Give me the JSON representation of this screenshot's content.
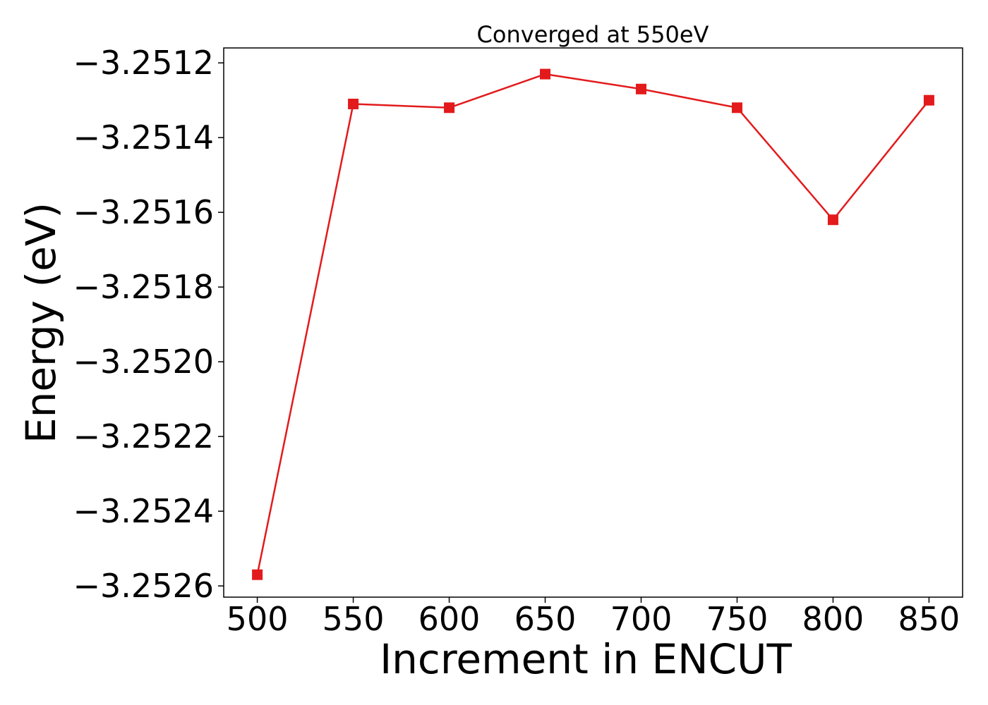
{
  "chart_data": {
    "type": "line",
    "title": "Converged at 550eV",
    "xlabel": "Increment in ENCUT",
    "ylabel": "Energy (eV)",
    "x": [
      500,
      550,
      600,
      650,
      700,
      750,
      800,
      850
    ],
    "series": [
      {
        "values": [
          -3.25257,
          -3.25131,
          -3.25132,
          -3.25123,
          -3.25127,
          -3.25132,
          -3.25162,
          -3.2513
        ],
        "color": "#e31a1c",
        "marker": "square"
      }
    ],
    "xticks": [
      500,
      550,
      600,
      650,
      700,
      750,
      800,
      850
    ],
    "xtick_labels": [
      "500",
      "550",
      "600",
      "650",
      "700",
      "750",
      "800",
      "850"
    ],
    "yticks": [
      -3.2526,
      -3.2524,
      -3.2522,
      -3.252,
      -3.2518,
      -3.2516,
      -3.2514,
      -3.2512
    ],
    "ytick_labels": [
      "−3.2526",
      "−3.2524",
      "−3.2522",
      "−3.2520",
      "−3.2518",
      "−3.2516",
      "−3.2514",
      "−3.2512"
    ],
    "xlim": [
      482.5,
      867.5
    ],
    "ylim": [
      -3.25263,
      -3.25116
    ],
    "grid": false,
    "legend": "none"
  }
}
